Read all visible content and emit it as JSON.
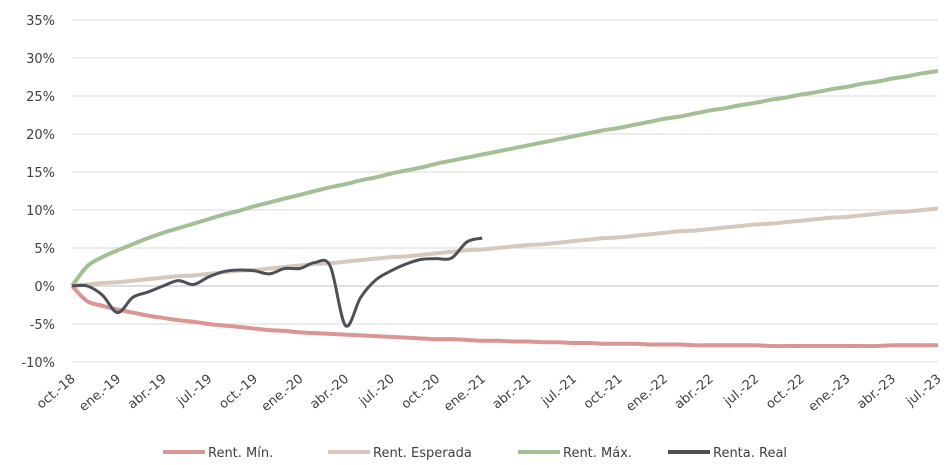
{
  "chart_data": {
    "type": "line",
    "categories": [
      "oct.-18",
      null,
      null,
      "ene.-19",
      null,
      null,
      "abr.-19",
      null,
      null,
      "jul.-19",
      null,
      null,
      "oct.-19",
      null,
      null,
      "ene.-20",
      null,
      null,
      "abr.-20",
      null,
      null,
      "jul.-20",
      null,
      null,
      "oct.-20",
      null,
      null,
      "ene.-21",
      null,
      null,
      "abr.-21",
      null,
      null,
      "jul.-21",
      null,
      null,
      "oct.-21",
      null,
      null,
      "ene.-22",
      null,
      null,
      "abr.-22",
      null,
      null,
      "jul.-22",
      null,
      null,
      "oct.-22",
      null,
      null,
      "ene.-23",
      null,
      null,
      "abr.-23",
      null,
      null,
      "jul.-23"
    ],
    "series": [
      {
        "name": "Rent. Mín.",
        "color": "#d99694",
        "values": [
          0,
          -2.0,
          -2.6,
          -3.1,
          -3.5,
          -3.9,
          -4.2,
          -4.5,
          -4.7,
          -5.0,
          -5.2,
          -5.4,
          -5.6,
          -5.8,
          -5.9,
          -6.1,
          -6.2,
          -6.3,
          -6.4,
          -6.5,
          -6.6,
          -6.7,
          -6.8,
          -6.9,
          -7.0,
          -7.0,
          -7.1,
          -7.2,
          -7.2,
          -7.3,
          -7.3,
          -7.4,
          -7.4,
          -7.5,
          -7.5,
          -7.6,
          -7.6,
          -7.6,
          -7.7,
          -7.7,
          -7.7,
          -7.8,
          -7.8,
          -7.8,
          -7.8,
          -7.8,
          -7.9,
          -7.9,
          -7.9,
          -7.9,
          -7.9,
          -7.9,
          -7.9,
          -7.9,
          -7.8,
          -7.8,
          -7.8,
          -7.8
        ]
      },
      {
        "name": "Rent. Esperada",
        "color": "#d5c9bd",
        "values": [
          0,
          0.2,
          0.4,
          0.5,
          0.7,
          0.9,
          1.1,
          1.3,
          1.4,
          1.6,
          1.8,
          2.0,
          2.1,
          2.3,
          2.5,
          2.7,
          2.9,
          3.0,
          3.2,
          3.4,
          3.6,
          3.8,
          3.9,
          4.1,
          4.3,
          4.5,
          4.7,
          4.8,
          5.0,
          5.2,
          5.4,
          5.5,
          5.7,
          5.9,
          6.1,
          6.3,
          6.4,
          6.6,
          6.8,
          7.0,
          7.2,
          7.3,
          7.5,
          7.7,
          7.9,
          8.1,
          8.2,
          8.4,
          8.6,
          8.8,
          9.0,
          9.1,
          9.3,
          9.5,
          9.7,
          9.8,
          10.0,
          10.2
        ]
      },
      {
        "name": "Rent. Máx.",
        "color": "#a5bf94",
        "values": [
          0,
          2.6,
          3.8,
          4.7,
          5.5,
          6.3,
          7.0,
          7.6,
          8.2,
          8.8,
          9.4,
          9.9,
          10.5,
          11.0,
          11.5,
          12.0,
          12.5,
          13.0,
          13.4,
          13.9,
          14.3,
          14.8,
          15.2,
          15.6,
          16.1,
          16.5,
          16.9,
          17.3,
          17.7,
          18.1,
          18.5,
          18.9,
          19.3,
          19.7,
          20.1,
          20.5,
          20.8,
          21.2,
          21.6,
          22.0,
          22.3,
          22.7,
          23.1,
          23.4,
          23.8,
          24.1,
          24.5,
          24.8,
          25.2,
          25.5,
          25.9,
          26.2,
          26.6,
          26.9,
          27.3,
          27.6,
          28.0,
          28.3
        ]
      },
      {
        "name": "Renta. Real",
        "color": "#4d5057",
        "values": [
          0,
          0,
          -1.2,
          -3.5,
          -1.5,
          -0.8,
          0,
          0.7,
          0.2,
          1.2,
          1.9,
          2.1,
          2.0,
          1.6,
          2.3,
          2.3,
          3.1,
          2.6,
          -5.2,
          -1.5,
          0.8,
          2.0,
          2.9,
          3.5,
          3.6,
          3.7,
          5.8,
          6.3,
          null,
          null,
          null,
          null,
          null,
          null,
          null,
          null,
          null,
          null,
          null,
          null,
          null,
          null,
          null,
          null,
          null,
          null,
          null,
          null,
          null,
          null,
          null,
          null,
          null,
          null,
          null,
          null,
          null,
          null
        ]
      }
    ],
    "ylim": [
      -10,
      35
    ],
    "yticks": [
      {
        "value": -10,
        "label": "-10%"
      },
      {
        "value": -5,
        "label": "-5%"
      },
      {
        "value": 0,
        "label": "0%"
      },
      {
        "value": 5,
        "label": "5%"
      },
      {
        "value": 10,
        "label": "10%"
      },
      {
        "value": 15,
        "label": "15%"
      },
      {
        "value": 20,
        "label": "20%"
      },
      {
        "value": 25,
        "label": "25%"
      },
      {
        "value": 30,
        "label": "30%"
      },
      {
        "value": 35,
        "label": "35%"
      }
    ],
    "grid": true,
    "legend": "bottom"
  }
}
